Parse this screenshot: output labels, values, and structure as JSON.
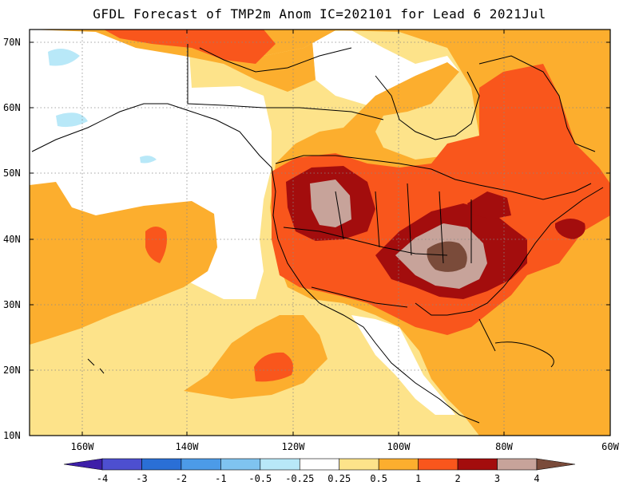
{
  "title": "GFDL Forecast of TMP2m Anom IC=202101 for Lead 6 2021Jul",
  "map": {
    "lat_labels": [
      "10N",
      "20N",
      "30N",
      "40N",
      "50N",
      "60N",
      "70N"
    ],
    "lon_labels": [
      "160W",
      "140W",
      "120W",
      "100W",
      "80W",
      "60W"
    ]
  },
  "colorbar": {
    "labels": [
      "-4",
      "-3",
      "-2",
      "-1",
      "-0.5",
      "-0.25",
      "0.25",
      "0.5",
      "1",
      "2",
      "3",
      "4"
    ],
    "colors": [
      "#3d1fa8",
      "#4d4fd0",
      "#2a6fd6",
      "#4c9be8",
      "#7fc3f0",
      "#b8e8f8",
      "#ffffff",
      "#fde38a",
      "#fcae2e",
      "#f9561c",
      "#a30d0d",
      "#c7a39a",
      "#7a4b3a"
    ]
  }
}
